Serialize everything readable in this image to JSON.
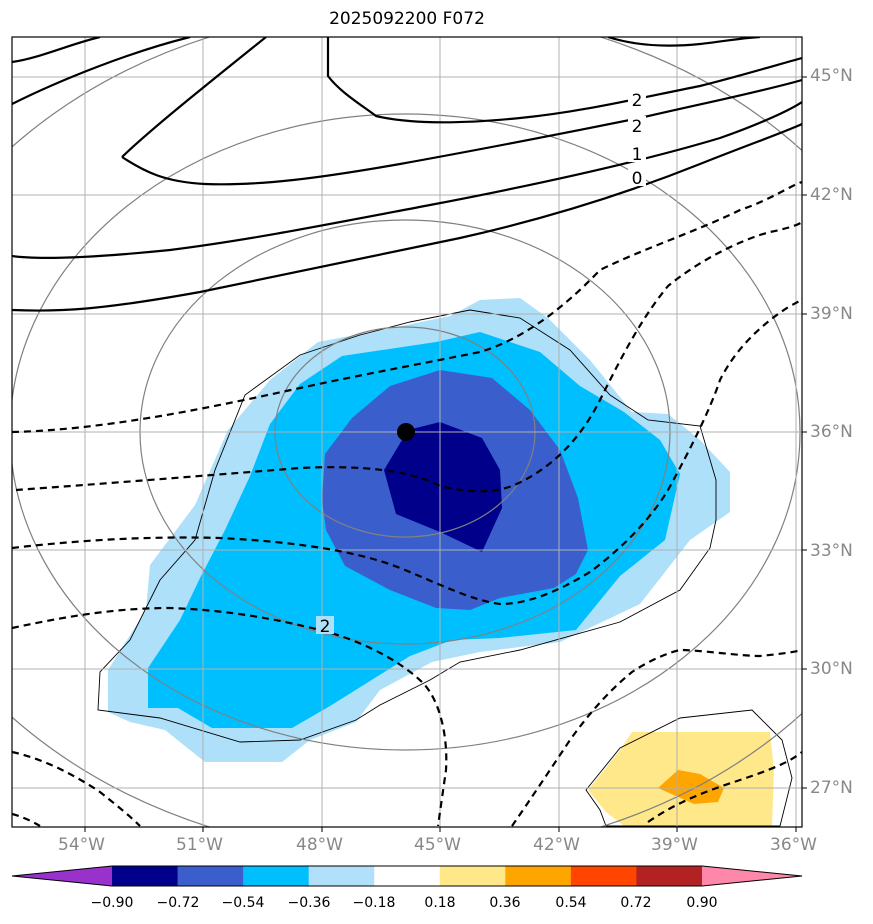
{
  "title": "2025092200 F072",
  "lat_ticks": [
    "45°N",
    "42°N",
    "39°N",
    "36°N",
    "33°N",
    "30°N",
    "27°N"
  ],
  "lon_ticks": [
    "54°W",
    "51°W",
    "48°W",
    "45°W",
    "42°W",
    "39°W",
    "36°W"
  ],
  "contour_labels": [
    "2",
    "2",
    "1",
    "0",
    "2"
  ],
  "colorbar": {
    "labels": [
      "−0.90",
      "−0.72",
      "−0.54",
      "−0.36",
      "−0.18",
      "0.18",
      "0.36",
      "0.54",
      "0.72",
      "0.90"
    ],
    "colors": [
      "#9932cc",
      "#00008b",
      "#3a5fcd",
      "#00bfff",
      "#b0e0fa",
      "#ffffff",
      "#ffe88a",
      "#ffa500",
      "#ff4500",
      "#b22222",
      "#ff88aa"
    ]
  },
  "shading_colors": {
    "light_blue": "#aee0fa",
    "blue": "#00bfff",
    "royal_blue": "#3a5fcd",
    "navy": "#00008b",
    "yellow": "#ffe88a",
    "orange": "#ffa500"
  },
  "grid_color": "#b0b0b0",
  "tick_color": "#888888"
}
